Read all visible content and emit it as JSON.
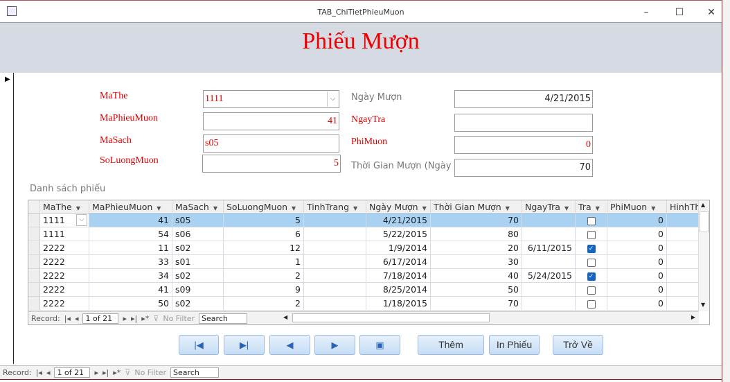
{
  "window": {
    "title": "TAB_ChiTietPhieuMuon",
    "minimize": "–",
    "maximize": "☐",
    "close": "✕"
  },
  "form": {
    "title": "Phiếu Mượn",
    "fields": {
      "mathe": {
        "label": "MaThe",
        "value": "1111"
      },
      "maphieumuon": {
        "label": "MaPhieuMuon",
        "value": "41"
      },
      "masach": {
        "label": "MaSach",
        "value": "s05"
      },
      "soluongmuon": {
        "label": "SoLuongMuon",
        "value": "5"
      },
      "ngaymuon": {
        "label": "Ngày Mượn",
        "value": "4/21/2015"
      },
      "ngaytra": {
        "label": "NgayTra",
        "value": ""
      },
      "phimuon": {
        "label": "PhiMuon",
        "value": "0"
      },
      "thoigianmuon": {
        "label": "Thời Gian Mượn (Ngày",
        "value": "70"
      }
    },
    "list_label": "Danh sách phiếu"
  },
  "grid": {
    "columns": [
      "MaThe",
      "MaPhieuMuon",
      "MaSach",
      "SoLuongMuon",
      "TinhTrang",
      "Ngày Mượn",
      "Thời Gian Mượn",
      "NgayTra",
      "Tra",
      "PhiMuon",
      "HinhTh"
    ],
    "rows": [
      [
        "1111",
        "41",
        "s05",
        "5",
        "",
        "4/21/2015",
        "70",
        "",
        false,
        "0",
        ""
      ],
      [
        "1111",
        "54",
        "s06",
        "6",
        "",
        "5/22/2015",
        "80",
        "",
        false,
        "0",
        ""
      ],
      [
        "2222",
        "11",
        "s02",
        "12",
        "",
        "1/9/2014",
        "20",
        "6/11/2015",
        true,
        "0",
        ""
      ],
      [
        "2222",
        "33",
        "s01",
        "1",
        "",
        "6/17/2014",
        "30",
        "",
        false,
        "0",
        ""
      ],
      [
        "2222",
        "34",
        "s02",
        "2",
        "",
        "7/18/2014",
        "40",
        "5/24/2015",
        true,
        "0",
        ""
      ],
      [
        "2222",
        "41",
        "s09",
        "9",
        "",
        "8/25/2014",
        "50",
        "",
        false,
        "0",
        ""
      ],
      [
        "2222",
        "50",
        "s02",
        "2",
        "",
        "1/18/2015",
        "70",
        "",
        false,
        "0",
        ""
      ]
    ],
    "nav": {
      "record_label": "Record:",
      "position": "1 of 21",
      "filter": "No Filter",
      "search": "Search"
    }
  },
  "buttons": {
    "first": "first-record",
    "last": "last-record",
    "prev": "previous-record",
    "next": "next-record",
    "print_icon": "print-record",
    "add": "Thêm",
    "print": "In Phiếu",
    "back": "Trở Về"
  },
  "form_nav": {
    "record_label": "Record:",
    "position": "1 of 21",
    "filter": "No Filter",
    "search": "Search"
  },
  "colors": {
    "label_red": "#dd0000",
    "header_bg": "#d6dae3",
    "selected_row": "#a9d1f1",
    "checkbox_on": "#1565c0"
  }
}
